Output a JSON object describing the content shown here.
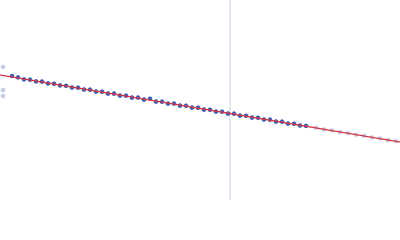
{
  "chart_data": {
    "type": "scatter",
    "xlim": [
      0,
      400
    ],
    "ylim": [
      0,
      200
    ],
    "vline_x": 230,
    "vline_color": "#c9d3e6",
    "series": [
      {
        "color": "#c3cde6",
        "x": [
          3,
          3,
          3,
          316,
          324,
          332,
          340,
          348,
          356,
          364,
          372,
          380,
          388,
          396
        ],
        "values": [
          133,
          110,
          104,
          72.3,
          70.5,
          69.6,
          67.8,
          66.9,
          65.2,
          64.2,
          62.5,
          61.6,
          59.8,
          58.9
        ]
      },
      {
        "color": "#3c62b3",
        "x": [
          12,
          18,
          24,
          30,
          36,
          42,
          48,
          54,
          60,
          66,
          72,
          78,
          84,
          90,
          96,
          102,
          108,
          114,
          120,
          126,
          132,
          138,
          144,
          150,
          156,
          162,
          168,
          174,
          180,
          186,
          192,
          198,
          204,
          210,
          216,
          222,
          228,
          234,
          240,
          246,
          252,
          258,
          264,
          270,
          276,
          282,
          288,
          294,
          300,
          306
        ],
        "values": [
          124,
          122.6,
          120.6,
          120.3,
          118.6,
          118.4,
          116.6,
          116.3,
          114.6,
          114.2,
          112.5,
          112.3,
          110.5,
          110.3,
          108.4,
          108.3,
          106.4,
          106.4,
          104.4,
          104.3,
          102.4,
          102.4,
          100.4,
          101.2,
          98.4,
          98.3,
          96.4,
          96.4,
          94.4,
          94.2,
          92.4,
          92.3,
          90.4,
          90.2,
          88.4,
          88.2,
          86.4,
          86.3,
          84.4,
          84.2,
          82.4,
          82.2,
          80.5,
          80.3,
          78.4,
          78.3,
          76.4,
          76.3,
          74.5,
          74.1
        ]
      }
    ],
    "fit": {
      "color": "#d8343f",
      "x": [
        0,
        400
      ],
      "values": [
        125,
        58
      ]
    }
  }
}
